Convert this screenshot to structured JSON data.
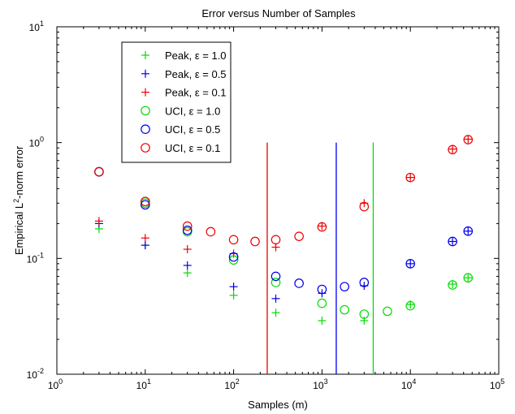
{
  "chart_data": {
    "type": "scatter",
    "title": "Error versus Number of Samples",
    "xlabel": "Samples (m)",
    "ylabel": "Empirical L²-norm error",
    "xscale": "log",
    "yscale": "log",
    "xlim": [
      1,
      100000
    ],
    "ylim": [
      0.01,
      10
    ],
    "x_ticks": [
      {
        "value": 1,
        "base": "10",
        "exp": "0"
      },
      {
        "value": 10,
        "base": "10",
        "exp": "1"
      },
      {
        "value": 100,
        "base": "10",
        "exp": "2"
      },
      {
        "value": 1000,
        "base": "10",
        "exp": "3"
      },
      {
        "value": 10000,
        "base": "10",
        "exp": "4"
      },
      {
        "value": 100000,
        "base": "10",
        "exp": "5"
      }
    ],
    "y_ticks": [
      {
        "value": 0.01,
        "base": "10",
        "exp": "-2"
      },
      {
        "value": 0.1,
        "base": "10",
        "exp": "-1"
      },
      {
        "value": 1,
        "base": "10",
        "exp": "0"
      },
      {
        "value": 10,
        "base": "10",
        "exp": "1"
      }
    ],
    "grid": false,
    "legend_position": "top-left",
    "series": [
      {
        "name": "Peak, ε = 1.0",
        "marker": "plus",
        "color": "#00dd00",
        "points": [
          [
            3,
            0.18
          ],
          [
            10,
            0.13
          ],
          [
            30,
            0.075
          ],
          [
            100,
            0.048
          ],
          [
            300,
            0.034
          ],
          [
            1000,
            0.029
          ],
          [
            3000,
            0.029
          ],
          [
            10000,
            0.04
          ],
          [
            30000,
            0.06
          ],
          [
            45000,
            0.068
          ]
        ]
      },
      {
        "name": "Peak, ε = 0.5",
        "marker": "plus",
        "color": "#0000ee",
        "points": [
          [
            3,
            0.2
          ],
          [
            10,
            0.13
          ],
          [
            30,
            0.087
          ],
          [
            100,
            0.057
          ],
          [
            300,
            0.045
          ],
          [
            1000,
            0.05
          ],
          [
            3000,
            0.058
          ],
          [
            10000,
            0.09
          ],
          [
            30000,
            0.14
          ],
          [
            45000,
            0.172
          ]
        ]
      },
      {
        "name": "Peak, ε = 0.1",
        "marker": "plus",
        "color": "#ee0000",
        "points": [
          [
            3,
            0.21
          ],
          [
            10,
            0.15
          ],
          [
            30,
            0.12
          ],
          [
            100,
            0.11
          ],
          [
            300,
            0.125
          ],
          [
            1000,
            0.19
          ],
          [
            3000,
            0.3
          ],
          [
            10000,
            0.5
          ],
          [
            30000,
            0.88
          ],
          [
            45000,
            1.07
          ]
        ]
      },
      {
        "name": "UCI, ε = 1.0",
        "marker": "circle",
        "color": "#00dd00",
        "points": [
          [
            3,
            0.56
          ],
          [
            10,
            0.3
          ],
          [
            30,
            0.17
          ],
          [
            100,
            0.097
          ],
          [
            300,
            0.062
          ],
          [
            1000,
            0.041
          ],
          [
            1800,
            0.036
          ],
          [
            3000,
            0.033
          ],
          [
            5500,
            0.035
          ],
          [
            10000,
            0.039
          ],
          [
            30000,
            0.059
          ],
          [
            45000,
            0.068
          ]
        ]
      },
      {
        "name": "UCI, ε = 0.5",
        "marker": "circle",
        "color": "#0000ee",
        "points": [
          [
            3,
            0.56
          ],
          [
            10,
            0.29
          ],
          [
            30,
            0.175
          ],
          [
            100,
            0.103
          ],
          [
            300,
            0.07
          ],
          [
            550,
            0.061
          ],
          [
            1000,
            0.054
          ],
          [
            1800,
            0.057
          ],
          [
            3000,
            0.062
          ],
          [
            10000,
            0.09
          ],
          [
            30000,
            0.14
          ],
          [
            45000,
            0.172
          ]
        ]
      },
      {
        "name": "UCI, ε = 0.1",
        "marker": "circle",
        "color": "#ee0000",
        "points": [
          [
            3,
            0.56
          ],
          [
            10,
            0.31
          ],
          [
            30,
            0.19
          ],
          [
            55,
            0.17
          ],
          [
            100,
            0.145
          ],
          [
            175,
            0.14
          ],
          [
            300,
            0.145
          ],
          [
            550,
            0.155
          ],
          [
            1000,
            0.187
          ],
          [
            3000,
            0.28
          ],
          [
            10000,
            0.5
          ],
          [
            30000,
            0.87
          ],
          [
            45000,
            1.06
          ]
        ]
      }
    ],
    "vertical_lines": [
      {
        "x": 240,
        "ymin": 0.01,
        "ymax": 1,
        "color": "#ee0000"
      },
      {
        "x": 1450,
        "ymin": 0.01,
        "ymax": 1,
        "color": "#0000ee"
      },
      {
        "x": 3800,
        "ymin": 0.01,
        "ymax": 1,
        "color": "#00dd00"
      }
    ]
  }
}
